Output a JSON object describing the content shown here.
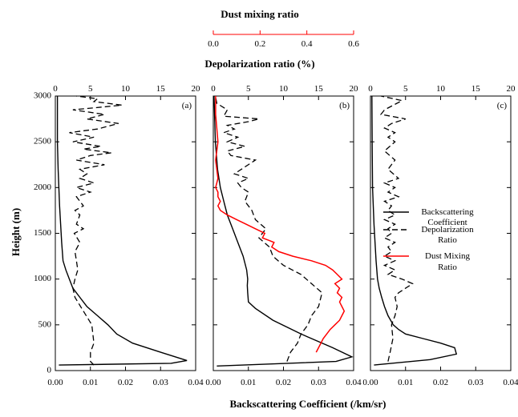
{
  "chart_data": {
    "type": "line",
    "top_title": "Dust mixing ratio",
    "top_title_color": "#ff0000",
    "top2_label": "Depolarization ratio (%)",
    "ylabel": "Height (m)",
    "xlabel": "Backscattering Coefficient   (/km/sr)",
    "ylim": [
      0,
      3000
    ],
    "yticks": [
      "0",
      "500",
      "1000",
      "1500",
      "2000",
      "2500",
      "3000"
    ],
    "bottom_xlim": [
      0,
      0.04
    ],
    "bottom_ticks": [
      "0.00",
      "0.01",
      "0.02",
      "0.03",
      "0.04"
    ],
    "depol_xlim": [
      0,
      20
    ],
    "depol_ticks": [
      "0",
      "5",
      "10",
      "15",
      "20"
    ],
    "dust_xlim": [
      0,
      0.6
    ],
    "dust_ticks": [
      "0.0",
      "0.2",
      "0.4",
      "0.6"
    ],
    "legend": {
      "items": [
        {
          "label_lines": [
            "Backscattering",
            "Coefficient"
          ],
          "style": "solid",
          "color": "#000000"
        },
        {
          "label_lines": [
            "Depolarization",
            "Ratio"
          ],
          "style": "dashed",
          "color": "#000000"
        },
        {
          "label_lines": [
            "Dust Mixing",
            "Ratio"
          ],
          "style": "solid",
          "color": "#ff0000"
        }
      ]
    },
    "panels": [
      {
        "label": "(a)",
        "backscatter": {
          "x": [
            0.001,
            0.033,
            0.0375,
            0.03,
            0.022,
            0.0175,
            0.015,
            0.012,
            0.009,
            0.007,
            0.005,
            0.004,
            0.003,
            0.0022,
            0.0018,
            0.0015,
            0.0012,
            0.001,
            0.0008,
            0.0006,
            0.0006
          ],
          "y": [
            60,
            80,
            110,
            200,
            300,
            400,
            500,
            600,
            700,
            800,
            900,
            1000,
            1100,
            1200,
            1400,
            1600,
            1800,
            2000,
            2200,
            2500,
            3000
          ]
        },
        "depol": {
          "x": [
            5.5,
            5.0,
            5.0,
            5.5,
            5.2,
            3.6,
            2.8,
            2.5,
            2.8,
            3.2,
            3.0,
            2.8,
            3.5,
            2.7,
            4.0,
            3.0,
            3.5,
            2.8,
            4.0,
            3.0,
            5.0,
            3.0,
            5.5,
            3.5,
            4.5,
            3.5,
            7.0,
            3.0,
            5.0,
            8.0,
            4.0,
            6.5,
            2.5,
            5.5,
            2.0,
            6.0,
            9.0,
            4.5,
            7.0,
            2.5,
            9.5,
            5.5,
            6.0,
            3.0
          ],
          "y": [
            60,
            100,
            200,
            300,
            500,
            700,
            800,
            900,
            1000,
            1100,
            1200,
            1300,
            1400,
            1500,
            1550,
            1600,
            1700,
            1750,
            1800,
            1900,
            1950,
            2000,
            2050,
            2100,
            2150,
            2200,
            2250,
            2300,
            2350,
            2380,
            2420,
            2450,
            2500,
            2550,
            2600,
            2640,
            2700,
            2750,
            2800,
            2850,
            2900,
            2940,
            2970,
            3000
          ]
        }
      },
      {
        "label": "(b)",
        "backscatter": {
          "x": [
            0.001,
            0.035,
            0.0395,
            0.034,
            0.025,
            0.017,
            0.012,
            0.01,
            0.0098,
            0.0097,
            0.0098,
            0.0095,
            0.0085,
            0.007,
            0.0055,
            0.004,
            0.003,
            0.002,
            0.0012,
            0.0006,
            0.0002
          ],
          "y": [
            50,
            100,
            150,
            250,
            400,
            550,
            680,
            750,
            850,
            930,
            1000,
            1100,
            1250,
            1400,
            1550,
            1700,
            1850,
            2000,
            2200,
            2500,
            3000
          ]
        },
        "depol": {
          "x": [
            10.5,
            11.0,
            12.0,
            12.5,
            13.5,
            14.0,
            15.0,
            15.5,
            14.0,
            12.5,
            10.0,
            8.5,
            8.0,
            6.5,
            7.5,
            6.0,
            5.5,
            4.5,
            5.0,
            4.0,
            3.5,
            5.0,
            3.0,
            6.0,
            2.5,
            2.0,
            4.5,
            2.0,
            3.5,
            1.5,
            3.0,
            2.0,
            5.0,
            6.5,
            1.5,
            2.0,
            0.5,
            0.3
          ],
          "y": [
            100,
            200,
            300,
            400,
            500,
            600,
            700,
            850,
            950,
            1050,
            1150,
            1250,
            1350,
            1450,
            1550,
            1650,
            1750,
            1850,
            1950,
            2000,
            2050,
            2100,
            2150,
            2300,
            2350,
            2400,
            2450,
            2500,
            2550,
            2600,
            2640,
            2680,
            2720,
            2750,
            2780,
            2850,
            2920,
            3000
          ]
        },
        "dust": {
          "x": [
            0.44,
            0.45,
            0.47,
            0.5,
            0.52,
            0.54,
            0.55,
            0.56,
            0.55,
            0.54,
            0.55,
            0.53,
            0.54,
            0.52,
            0.55,
            0.53,
            0.51,
            0.48,
            0.42,
            0.34,
            0.28,
            0.25,
            0.26,
            0.24,
            0.21,
            0.22,
            0.18,
            0.14,
            0.1,
            0.06,
            0.03,
            0.02,
            0.03,
            0.02,
            0.02,
            0.01,
            0.02,
            0.01,
            0.02,
            0.01,
            0.01
          ],
          "y": [
            200,
            250,
            350,
            450,
            500,
            550,
            600,
            650,
            700,
            750,
            800,
            850,
            900,
            950,
            1000,
            1050,
            1100,
            1150,
            1200,
            1250,
            1300,
            1350,
            1400,
            1420,
            1450,
            1500,
            1550,
            1600,
            1650,
            1700,
            1750,
            1800,
            1850,
            1900,
            1950,
            2000,
            2100,
            2300,
            2500,
            2800,
            3000
          ]
        }
      },
      {
        "label": "(c)",
        "backscatter": {
          "x": [
            0.001,
            0.017,
            0.0245,
            0.024,
            0.02,
            0.015,
            0.01,
            0.008,
            0.0065,
            0.005,
            0.004,
            0.0032,
            0.0025,
            0.002,
            0.0016,
            0.0013,
            0.001,
            0.0008,
            0.0006,
            0.0005,
            0.0004
          ],
          "y": [
            60,
            120,
            180,
            250,
            300,
            350,
            400,
            450,
            500,
            600,
            700,
            800,
            900,
            1000,
            1200,
            1400,
            1600,
            1800,
            2000,
            2400,
            3000
          ]
        },
        "depol": {
          "x": [
            2.5,
            2.8,
            3.2,
            3.0,
            3.5,
            3.8,
            3.5,
            4.0,
            5.0,
            6.0,
            4.5,
            2.5,
            3.5,
            2.0,
            3.5,
            2.0,
            3.0,
            2.5,
            3.5,
            2.0,
            3.0,
            2.5,
            3.5,
            2.0,
            3.5,
            2.5,
            3.0,
            2.0,
            4.0,
            2.5,
            3.5,
            2.0,
            4.0,
            2.5,
            3.5,
            2.0,
            3.5,
            2.5,
            3.5,
            2.0,
            3.0,
            5.0,
            1.5,
            2.0,
            4.5,
            1.5
          ],
          "y": [
            100,
            200,
            350,
            500,
            600,
            700,
            800,
            850,
            900,
            950,
            1000,
            1050,
            1100,
            1150,
            1200,
            1250,
            1300,
            1350,
            1400,
            1450,
            1500,
            1550,
            1600,
            1650,
            1700,
            1750,
            1800,
            1850,
            1900,
            1950,
            2000,
            2050,
            2100,
            2200,
            2300,
            2400,
            2500,
            2550,
            2600,
            2650,
            2700,
            2750,
            2800,
            2850,
            2950,
            3000
          ]
        }
      }
    ]
  }
}
